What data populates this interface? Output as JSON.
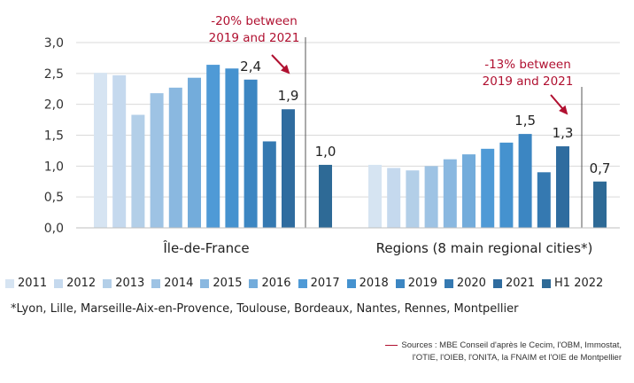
{
  "chart_data": {
    "type": "bar",
    "series_names": [
      "2011",
      "2012",
      "2013",
      "2014",
      "2015",
      "2016",
      "2017",
      "2018",
      "2019",
      "2020",
      "2021",
      "H1 2022"
    ],
    "colors": [
      "#d6e4f2",
      "#c5d9ee",
      "#b3cfe8",
      "#9ec3e4",
      "#8ab8e0",
      "#73acdb",
      "#4f9ad6",
      "#4592cf",
      "#3c86c2",
      "#3579b1",
      "#2f6c9f",
      "#2e6a96"
    ],
    "groups": [
      {
        "name": "Île-de-France",
        "values": [
          2.51,
          2.47,
          1.83,
          2.18,
          2.27,
          2.43,
          2.64,
          2.58,
          2.4,
          1.4,
          1.92,
          1.02
        ],
        "data_labels": {
          "8": "2,4",
          "10": "1,9",
          "11": "1,0"
        },
        "annotation": [
          "-20% between",
          "2019 and 2021"
        ]
      },
      {
        "name": "Regions (8 main regional cities*)",
        "values": [
          1.02,
          0.97,
          0.93,
          1.0,
          1.11,
          1.19,
          1.28,
          1.38,
          1.52,
          0.9,
          1.32,
          0.75
        ],
        "data_labels": {
          "8": "1,5",
          "10": "1,3",
          "11": "0,7"
        },
        "annotation": [
          "-13% between",
          "2019 and 2021"
        ]
      }
    ],
    "ylim": [
      0,
      3
    ],
    "yticks": [
      "0,0",
      "0,5",
      "1,0",
      "1,5",
      "2,0",
      "2,5",
      "3,0"
    ],
    "grid": true,
    "legend_position": "bottom"
  },
  "footnote": "*Lyon, Lille, Marseille-Aix-en-Provence, Toulouse, Bordeaux, Nantes, Rennes, Montpellier",
  "sources": [
    "Sources : MBE Conseil d'après le Cecim, l'OBM, Immostat,",
    "l'OTIE, l'OIEB, l'ONITA, la FNAIM et l'OIE de Montpellier"
  ]
}
